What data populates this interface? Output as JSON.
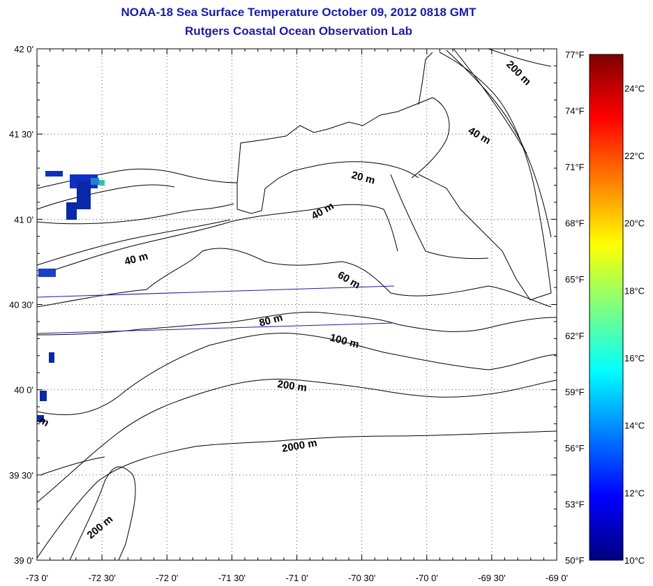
{
  "title": {
    "line1": "NOAA-18 Sea Surface Temperature October 09, 2012 0818 GMT",
    "line2": "Rutgers Coastal Ocean Observation Lab"
  },
  "axes": {
    "lon_labels": [
      "-73 0'",
      "-72 30'",
      "-72 0'",
      "-71 30'",
      "-71 0'",
      "-70 30'",
      "-70 0'",
      "-69 30'",
      "-69 0'"
    ],
    "lat_labels": [
      "42 0'",
      "41 30'",
      "41 0'",
      "40 30'",
      "40 0'",
      "39 30'",
      "39 0'"
    ],
    "lon_range": [
      -73,
      -69
    ],
    "lat_range": [
      39,
      42
    ]
  },
  "right_scale": {
    "fahrenheit": [
      "77°F",
      "74°F",
      "71°F",
      "68°F",
      "65°F",
      "62°F",
      "59°F",
      "56°F",
      "53°F",
      "50°F"
    ]
  },
  "colorbar": {
    "celsius_labels": [
      "24°C",
      "22°C",
      "20°C",
      "18°C",
      "16°C",
      "14°C",
      "12°C",
      "10°C"
    ],
    "range_c": [
      10,
      25
    ],
    "colors": [
      "#00007f",
      "#0000ff",
      "#007fff",
      "#00ffff",
      "#7fff7f",
      "#ffff00",
      "#ff7f00",
      "#ff0000",
      "#7f0000"
    ]
  },
  "contours": {
    "labels": [
      "200 m",
      "40 m",
      "20 m",
      "40 m",
      "40 m",
      "60 m",
      "80 m",
      "100 m",
      "200 m",
      "2000 m",
      "200 m",
      "m"
    ]
  },
  "grid": true
}
